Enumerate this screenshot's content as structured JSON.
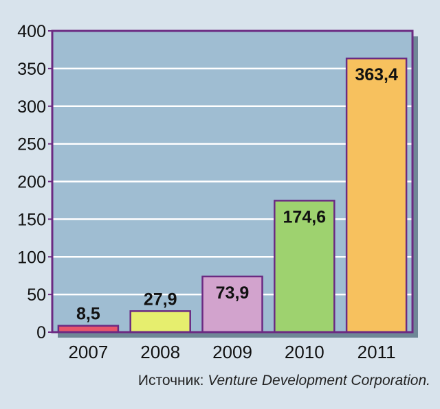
{
  "chart_data": {
    "type": "bar",
    "categories": [
      "2007",
      "2008",
      "2009",
      "2010",
      "2011"
    ],
    "values": [
      8.5,
      27.9,
      73.9,
      174.6,
      363.4
    ],
    "value_labels": [
      "8,5",
      "27,9",
      "73,9",
      "174,6",
      "363,4"
    ],
    "bar_colors": [
      "#e8556b",
      "#e6ee6e",
      "#d2a3cd",
      "#9ed26f",
      "#f7c15e"
    ],
    "title": "",
    "xlabel": "",
    "ylabel": "",
    "ylim": [
      0,
      400
    ],
    "yticks": [
      0,
      50,
      100,
      150,
      200,
      250,
      300,
      350,
      400
    ],
    "grid": true,
    "legend": "none",
    "plot_background": "#9fbdd2",
    "frame_color": "#6b2a82"
  },
  "source": {
    "prefix": "Источник: ",
    "name": "Venture Development Corporation."
  }
}
